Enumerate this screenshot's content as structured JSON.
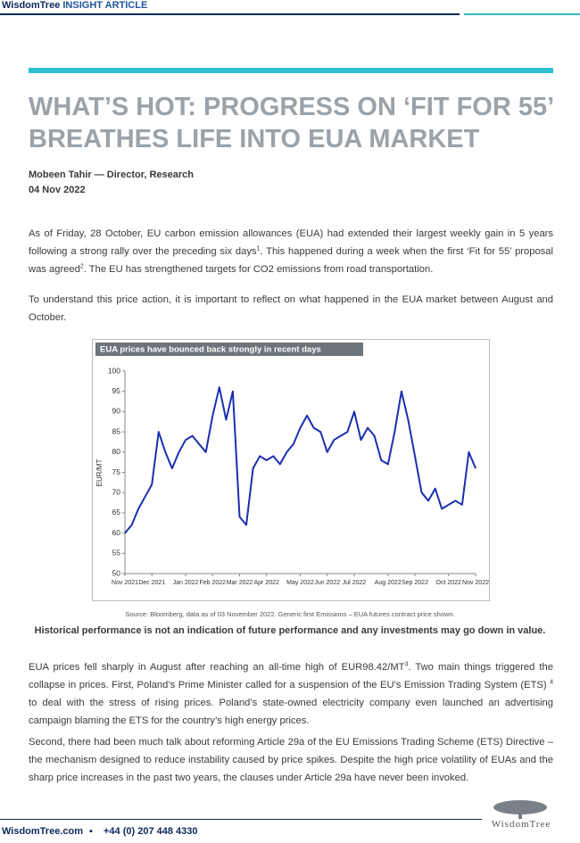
{
  "header": {
    "brand": "WisdomTree",
    "label": "INSIGHT ARTICLE"
  },
  "title": "WHAT’S HOT: PROGRESS ON ‘FIT FOR 55’ BREATHES LIFE INTO EUA MARKET",
  "author": "Mobeen Tahir — Director, Research",
  "date": "04 Nov 2022",
  "paragraphs": [
    [
      "As of Friday, 28 October, EU carbon emission allowances (EUA) had extended their largest weekly gain in 5 years following a strong rally over the preceding six days",
      "1",
      ". This happened during a week when the first ‘Fit for 55’ proposal was agreed",
      "2",
      ". The EU has strengthened targets for CO2 emissions from road transportation."
    ],
    [
      "To understand this price action, it is important to reflect on what happened in the EUA market between August and October."
    ],
    [
      "EUA prices fell sharply in August after reaching an all-time high of EUR98.42/MT",
      "3",
      ". Two main things triggered the collapse in prices. First, Poland’s Prime Minister called for a suspension of the EU’s Emission Trading System (ETS) ",
      "4",
      " to deal with the stress of rising prices. Poland’s state-owned electricity company even launched an advertising campaign blaming the ETS for the country’s high energy prices."
    ],
    [
      "Second, there had been much talk about reforming Article 29a of the EU Emissions Trading Scheme (ETS) Directive – the mechanism designed to reduce instability caused by price spikes. Despite the high price volatility of EUAs and the sharp price increases in the past two years, the clauses under Article 29a have never been invoked."
    ]
  ],
  "chart_data": {
    "type": "line",
    "title": "EUA prices have bounced back strongly in recent days",
    "y_label": "EUR/MT",
    "categories": [
      "Nov 2021",
      null,
      null,
      null,
      "Dec 2021",
      null,
      null,
      null,
      null,
      "Jan 2022",
      null,
      null,
      null,
      "Feb 2022",
      null,
      null,
      null,
      "Mar 2022",
      null,
      null,
      null,
      "Apr 2022",
      null,
      null,
      null,
      null,
      "May 2022",
      null,
      null,
      null,
      "Jun 2022",
      null,
      null,
      null,
      "Jul 2022",
      null,
      null,
      null,
      null,
      "Aug 2022",
      null,
      null,
      null,
      "Sep 2022",
      null,
      null,
      null,
      null,
      "Oct 2022",
      null,
      null,
      null,
      "Nov 2022"
    ],
    "values": [
      60,
      62,
      66,
      69,
      72,
      85,
      80,
      76,
      80,
      83,
      84,
      82,
      80,
      89,
      96,
      88,
      95,
      64,
      62,
      76,
      79,
      78,
      79,
      77,
      80,
      82,
      86,
      89,
      86,
      85,
      80,
      83,
      84,
      85,
      90,
      83,
      86,
      84,
      78,
      77,
      85,
      95,
      88,
      79,
      70,
      68,
      71,
      66,
      67,
      68,
      67,
      80,
      76
    ],
    "color": "#1a2fb0",
    "ylim": [
      50,
      100
    ],
    "yticks": [
      50,
      55,
      60,
      65,
      70,
      75,
      80,
      85,
      90,
      95,
      100
    ],
    "grid": false
  },
  "source": "Source: Bloomberg, data as of 03 November 2022. Generic first Emissions – EUA futures contract price shown.",
  "disclaimer": "Historical performance is not an indication of future performance and any investments may go down in value.",
  "footer": {
    "website": "WisdomTree.com",
    "phone": "+44 (0) 207 448 4330",
    "logo": "WisdomTree"
  }
}
